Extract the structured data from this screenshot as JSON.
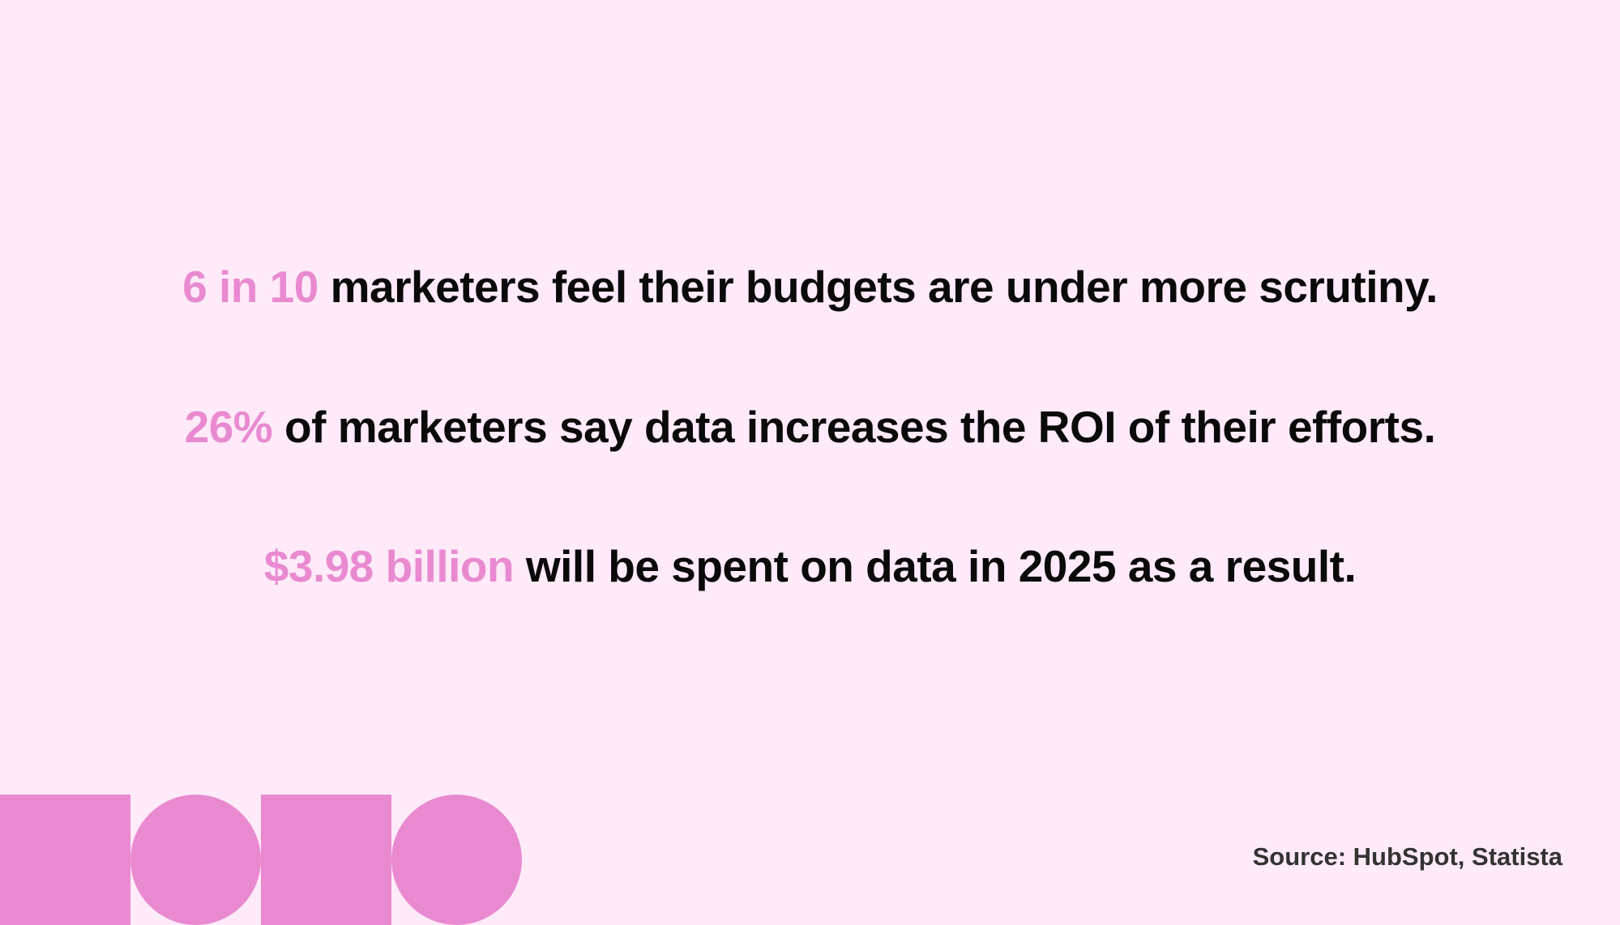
{
  "stats": [
    {
      "highlight": "6 in 10",
      "text": " marketers feel their budgets are under more scrutiny."
    },
    {
      "highlight": "26%",
      "text": " of marketers say data increases the ROI of their efforts."
    },
    {
      "highlight": "$3.98 billion",
      "text": " will be spent on data in 2025 as a result."
    }
  ],
  "source": "Source: HubSpot, Statista",
  "colors": {
    "background": "#ffeaf9",
    "accent": "#e98ad0",
    "text": "#0a0a0a"
  }
}
